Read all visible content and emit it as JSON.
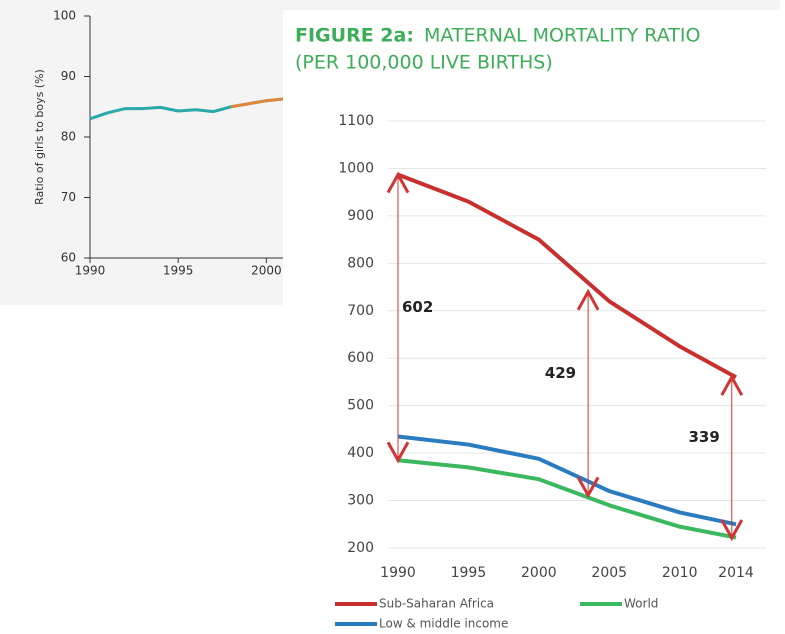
{
  "chart_data": [
    {
      "type": "line",
      "y_label": "Ratio of girls to boys (%)",
      "xlim": [
        1990,
        2001
      ],
      "xticks": [
        1990,
        1995,
        2000
      ],
      "ylim": [
        60,
        100
      ],
      "yticks": [
        60,
        70,
        80,
        90,
        100
      ],
      "grid": false,
      "x": [
        1990,
        1991,
        1992,
        1993,
        1994,
        1995,
        1996,
        1997,
        1998,
        1999,
        2000,
        2001
      ],
      "series": [
        {
          "color": "#2aa9a8",
          "values": [
            83,
            84,
            84.7,
            84.7,
            84.9,
            84.3,
            84.5,
            84.2,
            85,
            85.5,
            86,
            86.3
          ]
        },
        {
          "color": "#e0883a",
          "values": [
            null,
            null,
            null,
            null,
            null,
            null,
            null,
            null,
            85,
            85.5,
            86,
            86.3
          ]
        }
      ]
    },
    {
      "type": "line",
      "title_label": "FIGURE 2a:",
      "title": "MATERNAL MORTALITY RATIO",
      "subtitle": "(PER 100,000 LIVE BIRTHS)",
      "xlim": [
        1990,
        2014
      ],
      "xticks": [
        1990,
        1995,
        2000,
        2005,
        2010,
        2014
      ],
      "ylim": [
        200,
        1100
      ],
      "yticks": [
        200,
        300,
        400,
        500,
        600,
        700,
        800,
        900,
        1000,
        1100
      ],
      "grid": true,
      "x": [
        1990,
        1995,
        2000,
        2005,
        2010,
        2014
      ],
      "series": [
        {
          "name": "Sub-Saharan Africa",
          "color": "#c8302f",
          "values": [
            987,
            930,
            850,
            720,
            625,
            560
          ]
        },
        {
          "name": "World",
          "color": "#3cb860",
          "values": [
            385,
            370,
            345,
            290,
            245,
            222
          ]
        },
        {
          "name": "Low & middle income",
          "color": "#2b7bc0",
          "values": [
            435,
            418,
            388,
            320,
            275,
            250
          ]
        }
      ],
      "annotations": [
        {
          "x": 1990,
          "y1": 987,
          "y2": 385,
          "value": 602
        },
        {
          "x": 2003.5,
          "y1": 740,
          "y2": 311,
          "value": 429
        },
        {
          "x": 2013.7,
          "y1": 560,
          "y2": 221,
          "value": 339
        }
      ]
    }
  ]
}
